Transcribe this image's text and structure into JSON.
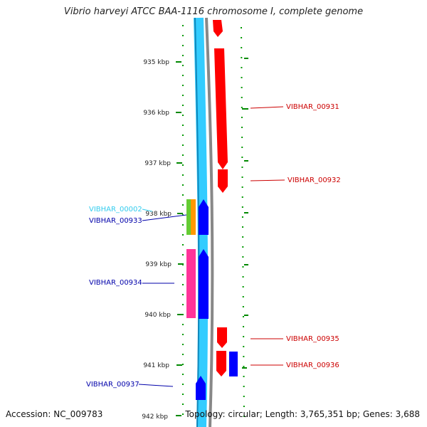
{
  "title": "Vibrio harveyi ATCC BAA-1116 chromosome I, complete genome",
  "accession": "Accession: NC_009783",
  "summary": "Topology: circular; Length: 3,765,351 bp; Genes: 3,688",
  "ruler": [
    "935 kbp",
    "936 kbp",
    "937 kbp",
    "938 kbp",
    "939 kbp",
    "940 kbp",
    "941 kbp",
    "942 kbp"
  ],
  "features": {
    "forward": [
      {
        "name": "VIBHAR_00931",
        "color": "#cc0000"
      },
      {
        "name": "VIBHAR_00932",
        "color": "#cc0000"
      },
      {
        "name": "VIBHAR_00935",
        "color": "#cc0000"
      },
      {
        "name": "VIBHAR_00936",
        "color": "#cc0000"
      }
    ],
    "reverse": [
      {
        "name": "VIBHAR_00002",
        "color": "#33ccee"
      },
      {
        "name": "VIBHAR_00933",
        "color": "#0000aa"
      },
      {
        "name": "VIBHAR_00934",
        "color": "#0000aa"
      },
      {
        "name": "VIBHAR_00937",
        "color": "#0000aa"
      }
    ]
  },
  "colors": {
    "cds_forward": "#ff0000",
    "cds_reverse": "#0000ff",
    "backbone": "#33ccff",
    "skew": "#888888",
    "gc_track": "#009900",
    "orange": "#ff9900",
    "green": "#66cc33",
    "pink": "#ff3399"
  }
}
